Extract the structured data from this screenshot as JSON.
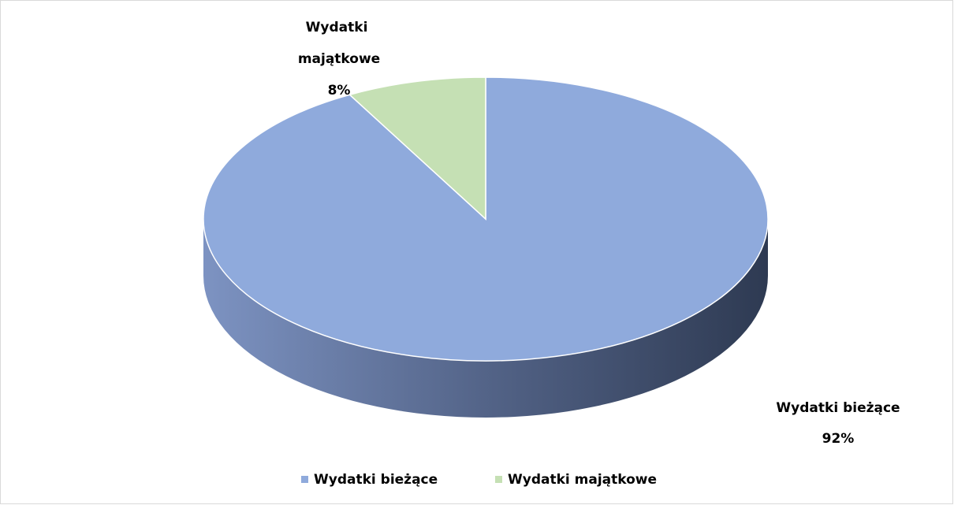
{
  "chart_data": {
    "type": "pie",
    "categories": [
      "Wydatki bieżące",
      "Wydatki majątkowe"
    ],
    "values": [
      92,
      8
    ],
    "value_labels": [
      "92%",
      "8%"
    ],
    "colors": [
      "#8faadc",
      "#c5e0b4"
    ],
    "legend": "bottom"
  }
}
